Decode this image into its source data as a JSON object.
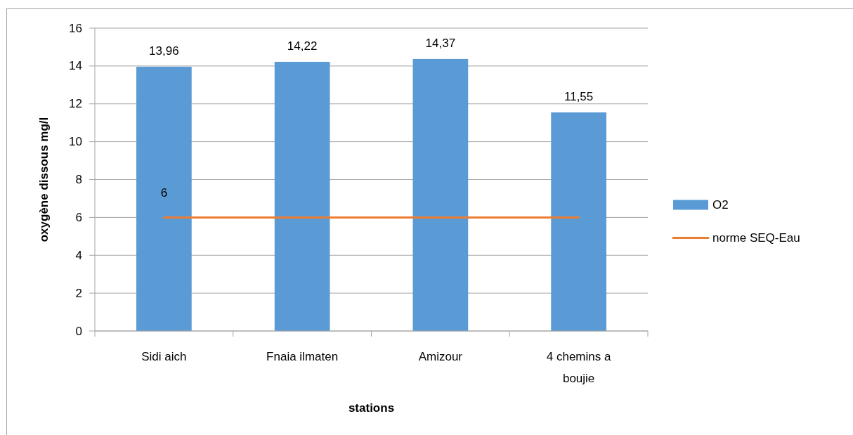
{
  "chart_data": {
    "type": "bar",
    "xlabel": "stations",
    "ylabel": "oxygène dissous mg/l",
    "categories": [
      "Sidi aich",
      "Fnaia ilmaten",
      "Amizour",
      "4 chemins a boujie"
    ],
    "series": [
      {
        "name": "O2",
        "color": "#5b9bd5",
        "values": [
          13.96,
          14.22,
          14.37,
          11.55
        ],
        "value_labels": [
          "13,96",
          "14,22",
          "14,37",
          "11,55"
        ]
      },
      {
        "name": "norme SEQ-Eau",
        "type": "line",
        "color": "#ed7d31",
        "values": [
          6,
          6,
          6,
          6
        ],
        "value_labels": [
          "6",
          null,
          null,
          null
        ]
      }
    ],
    "ylim": [
      0,
      16
    ],
    "yticks": [
      0,
      2,
      4,
      6,
      8,
      10,
      12,
      14,
      16
    ],
    "grid": "y",
    "legend": "right"
  }
}
